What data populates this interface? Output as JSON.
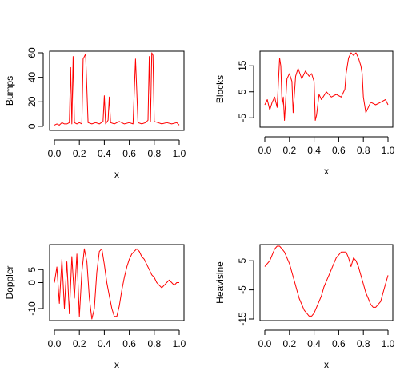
{
  "colors": {
    "series": "#ff0000",
    "axes": "#000000",
    "background": "#ffffff"
  },
  "chart_data": [
    {
      "type": "line",
      "xlabel": "x",
      "ylabel": "Bumps",
      "xlim": [
        0,
        1
      ],
      "ylim": [
        -2,
        60
      ],
      "xticks": [
        "0.0",
        "0.2",
        "0.4",
        "0.6",
        "0.8",
        "1.0"
      ],
      "yticks": [
        "0",
        "20",
        "40",
        "60"
      ],
      "series": [
        {
          "x": [
            0,
            0.02,
            0.04,
            0.06,
            0.08,
            0.1,
            0.12,
            0.13,
            0.14,
            0.15,
            0.16,
            0.18,
            0.2,
            0.22,
            0.23,
            0.25,
            0.27,
            0.3,
            0.33,
            0.36,
            0.39,
            0.4,
            0.41,
            0.43,
            0.44,
            0.45,
            0.48,
            0.52,
            0.56,
            0.6,
            0.63,
            0.65,
            0.67,
            0.7,
            0.73,
            0.75,
            0.76,
            0.77,
            0.78,
            0.79,
            0.8,
            0.83,
            0.86,
            0.9,
            0.94,
            0.98,
            1.0
          ],
          "y": [
            1,
            2,
            1,
            3,
            2,
            2,
            3,
            48,
            2,
            57,
            3,
            2,
            3,
            2,
            55,
            59,
            3,
            2,
            3,
            2,
            4,
            25,
            2,
            5,
            24,
            3,
            2,
            4,
            2,
            3,
            2,
            55,
            3,
            2,
            3,
            5,
            57,
            4,
            60,
            58,
            4,
            3,
            2,
            3,
            2,
            3,
            1
          ]
        }
      ]
    },
    {
      "type": "line",
      "xlabel": "x",
      "ylabel": "Blocks",
      "xlim": [
        0,
        1
      ],
      "ylim": [
        -8,
        20
      ],
      "xticks": [
        "0.0",
        "0.2",
        "0.4",
        "0.6",
        "0.8",
        "1.0"
      ],
      "yticks": [
        "-5",
        "5",
        "15"
      ],
      "series": [
        {
          "x": [
            0,
            0.02,
            0.04,
            0.06,
            0.08,
            0.1,
            0.11,
            0.12,
            0.13,
            0.14,
            0.15,
            0.16,
            0.18,
            0.2,
            0.22,
            0.23,
            0.25,
            0.27,
            0.3,
            0.33,
            0.36,
            0.38,
            0.4,
            0.41,
            0.42,
            0.44,
            0.46,
            0.5,
            0.54,
            0.58,
            0.62,
            0.65,
            0.66,
            0.68,
            0.7,
            0.72,
            0.74,
            0.76,
            0.78,
            0.79,
            0.8,
            0.82,
            0.86,
            0.9,
            0.94,
            0.98,
            1.0
          ],
          "y": [
            0,
            2,
            -2,
            1,
            3,
            -1,
            8,
            18,
            15,
            0,
            3,
            -6,
            10,
            12,
            9,
            -3,
            11,
            14,
            10,
            13,
            11,
            12,
            9,
            -6,
            -4,
            4,
            2,
            5,
            3,
            4,
            3,
            6,
            12,
            18,
            20,
            19,
            20,
            18,
            15,
            12,
            3,
            -3,
            1,
            0,
            1,
            2,
            0
          ]
        }
      ]
    },
    {
      "type": "line",
      "xlabel": "x",
      "ylabel": "Doppler",
      "xlim": [
        0,
        1
      ],
      "ylim": [
        -14,
        14
      ],
      "xticks": [
        "0.0",
        "0.2",
        "0.4",
        "0.6",
        "0.8",
        "1.0"
      ],
      "yticks": [
        "-10",
        "0",
        "5"
      ],
      "series": [
        {
          "x": [
            0,
            0.02,
            0.04,
            0.06,
            0.08,
            0.1,
            0.12,
            0.14,
            0.16,
            0.18,
            0.2,
            0.22,
            0.24,
            0.26,
            0.28,
            0.3,
            0.32,
            0.34,
            0.36,
            0.38,
            0.4,
            0.42,
            0.44,
            0.46,
            0.48,
            0.5,
            0.52,
            0.54,
            0.56,
            0.58,
            0.6,
            0.62,
            0.64,
            0.66,
            0.68,
            0.7,
            0.72,
            0.74,
            0.76,
            0.78,
            0.8,
            0.82,
            0.84,
            0.86,
            0.88,
            0.9,
            0.92,
            0.94,
            0.96,
            0.98,
            1.0
          ],
          "y": [
            0,
            6,
            -8,
            9,
            -10,
            8,
            -12,
            10,
            -6,
            11,
            -13,
            4,
            13,
            8,
            -6,
            -14,
            -10,
            4,
            12,
            13,
            7,
            0,
            -5,
            -10,
            -13,
            -13,
            -9,
            -3,
            2,
            6,
            9,
            11,
            12,
            13,
            12,
            10,
            9,
            7,
            5,
            3,
            2,
            0,
            -1,
            -2,
            -1,
            0,
            1,
            0,
            -1,
            0,
            0
          ]
        }
      ]
    },
    {
      "type": "line",
      "xlabel": "x",
      "ylabel": "Heavisine",
      "xlim": [
        0,
        1
      ],
      "ylim": [
        -15,
        10
      ],
      "xticks": [
        "0.0",
        "0.2",
        "0.4",
        "0.6",
        "0.8",
        "1.0"
      ],
      "yticks": [
        "-15",
        "-5",
        "5"
      ],
      "series": [
        {
          "x": [
            0,
            0.02,
            0.04,
            0.06,
            0.08,
            0.1,
            0.12,
            0.14,
            0.16,
            0.18,
            0.2,
            0.22,
            0.24,
            0.26,
            0.28,
            0.3,
            0.32,
            0.34,
            0.36,
            0.38,
            0.4,
            0.42,
            0.44,
            0.46,
            0.48,
            0.5,
            0.52,
            0.54,
            0.56,
            0.58,
            0.6,
            0.62,
            0.64,
            0.66,
            0.68,
            0.7,
            0.72,
            0.74,
            0.76,
            0.78,
            0.8,
            0.82,
            0.84,
            0.86,
            0.88,
            0.9,
            0.92,
            0.94,
            0.96,
            0.98,
            1.0
          ],
          "y": [
            3,
            4,
            5,
            7,
            9,
            10,
            10,
            9,
            8,
            6,
            4,
            1,
            -2,
            -5,
            -8,
            -10,
            -12,
            -13,
            -14,
            -14,
            -13,
            -11,
            -9,
            -7,
            -4,
            -2,
            0,
            2,
            4,
            6,
            7,
            8,
            8,
            8,
            6,
            3,
            6,
            5,
            3,
            0,
            -3,
            -6,
            -8,
            -10,
            -11,
            -11,
            -10,
            -9,
            -6,
            -3,
            0
          ]
        }
      ]
    }
  ]
}
